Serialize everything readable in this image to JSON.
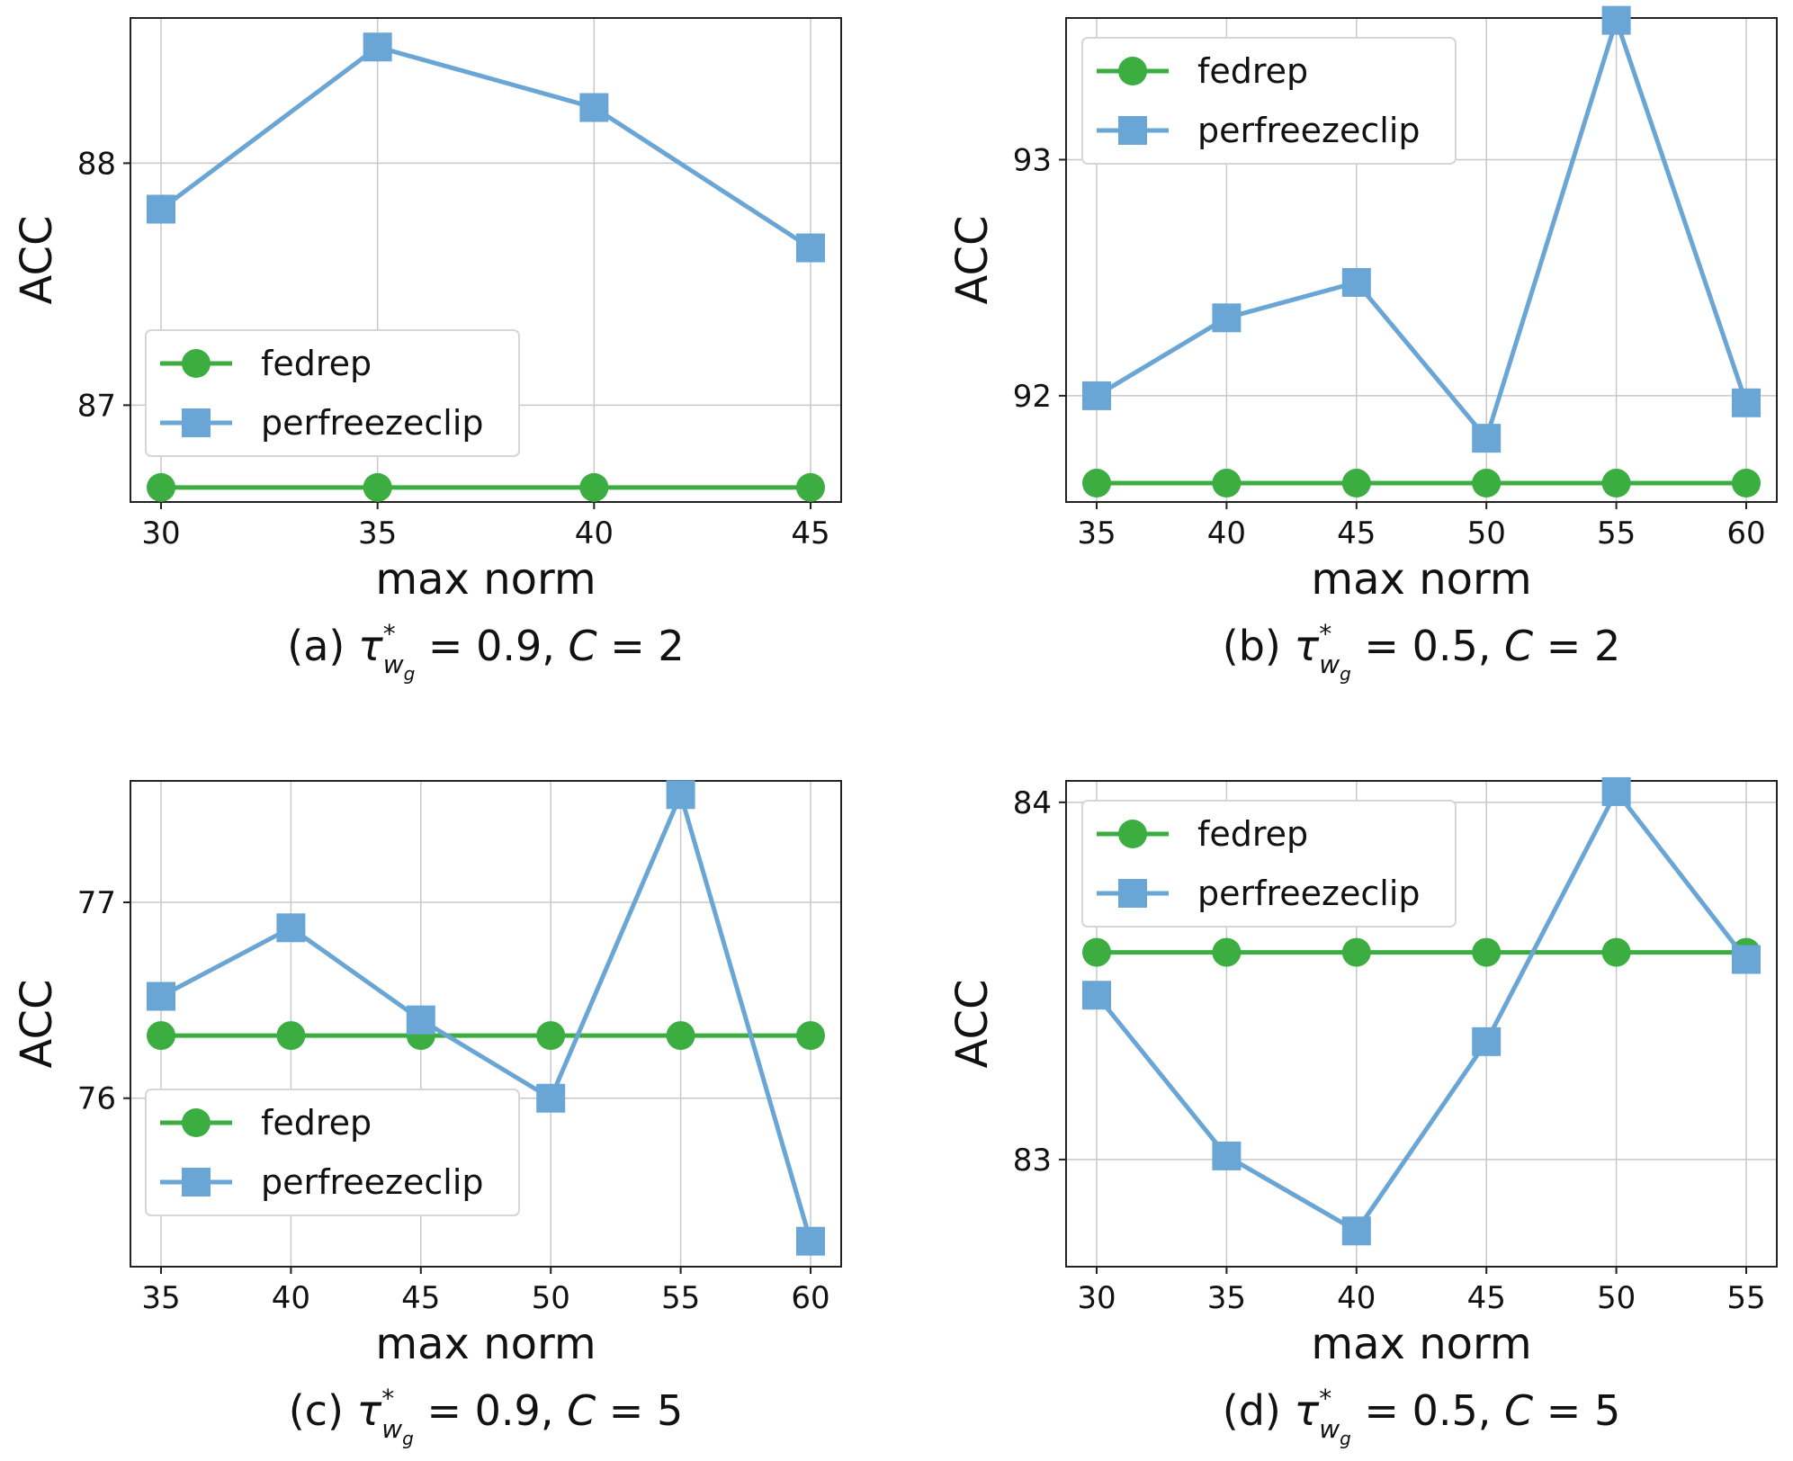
{
  "colors": {
    "fedrep": "#3cae41",
    "perfreezeclip": "#6aa6d5"
  },
  "chart_data": [
    {
      "type": "line",
      "caption": {
        "prefix": "(a) ",
        "value": "0.9",
        "c": "2"
      },
      "xlabel": "max norm",
      "ylabel": "ACC",
      "x": [
        30,
        35,
        40,
        45
      ],
      "xticks": [
        "30",
        "35",
        "40",
        "45"
      ],
      "yticks": [
        87,
        88
      ],
      "ylim": [
        86.6,
        88.6
      ],
      "grid": true,
      "legend_position": "center-left",
      "series": [
        {
          "name": "fedrep",
          "marker": "circle",
          "values": [
            86.66,
            86.66,
            86.66,
            86.66
          ]
        },
        {
          "name": "perfreezeclip",
          "marker": "square",
          "values": [
            87.81,
            88.48,
            88.23,
            87.65
          ]
        }
      ]
    },
    {
      "type": "line",
      "caption": {
        "prefix": "(b) ",
        "value": "0.5",
        "c": "2"
      },
      "xlabel": "max norm",
      "ylabel": "ACC",
      "x": [
        35,
        40,
        45,
        50,
        55,
        60
      ],
      "xticks": [
        "35",
        "40",
        "45",
        "50",
        "55",
        "60"
      ],
      "yticks": [
        92,
        93
      ],
      "ylim": [
        91.55,
        93.6
      ],
      "grid": true,
      "legend_position": "top-left",
      "series": [
        {
          "name": "fedrep",
          "marker": "circle",
          "values": [
            91.63,
            91.63,
            91.63,
            91.63,
            91.63,
            91.63
          ]
        },
        {
          "name": "perfreezeclip",
          "marker": "square",
          "values": [
            92.0,
            92.33,
            92.48,
            91.82,
            93.59,
            91.97
          ]
        }
      ]
    },
    {
      "type": "line",
      "caption": {
        "prefix": "(c) ",
        "value": "0.9",
        "c": "5"
      },
      "xlabel": "max norm",
      "ylabel": "ACC",
      "x": [
        35,
        40,
        45,
        50,
        55,
        60
      ],
      "xticks": [
        "35",
        "40",
        "45",
        "50",
        "55",
        "60"
      ],
      "yticks": [
        76,
        77
      ],
      "ylim": [
        75.14,
        77.62
      ],
      "grid": true,
      "legend_position": "bottom-left",
      "series": [
        {
          "name": "fedrep",
          "marker": "circle",
          "values": [
            76.32,
            76.32,
            76.32,
            76.32,
            76.32,
            76.32
          ]
        },
        {
          "name": "perfreezeclip",
          "marker": "square",
          "values": [
            76.52,
            76.87,
            76.4,
            76.0,
            77.55,
            75.27
          ]
        }
      ]
    },
    {
      "type": "line",
      "caption": {
        "prefix": "(d) ",
        "value": "0.5",
        "c": "5"
      },
      "xlabel": "max norm",
      "ylabel": "ACC",
      "x": [
        30,
        35,
        40,
        45,
        50,
        55
      ],
      "xticks": [
        "30",
        "35",
        "40",
        "45",
        "50",
        "55"
      ],
      "yticks": [
        83,
        84
      ],
      "ylim": [
        82.7,
        84.06
      ],
      "grid": true,
      "legend_position": "top-left",
      "series": [
        {
          "name": "fedrep",
          "marker": "circle",
          "values": [
            83.58,
            83.58,
            83.58,
            83.58,
            83.58,
            83.58
          ]
        },
        {
          "name": "perfreezeclip",
          "marker": "square",
          "values": [
            83.46,
            83.01,
            82.8,
            83.33,
            84.03,
            83.56
          ]
        }
      ]
    }
  ]
}
